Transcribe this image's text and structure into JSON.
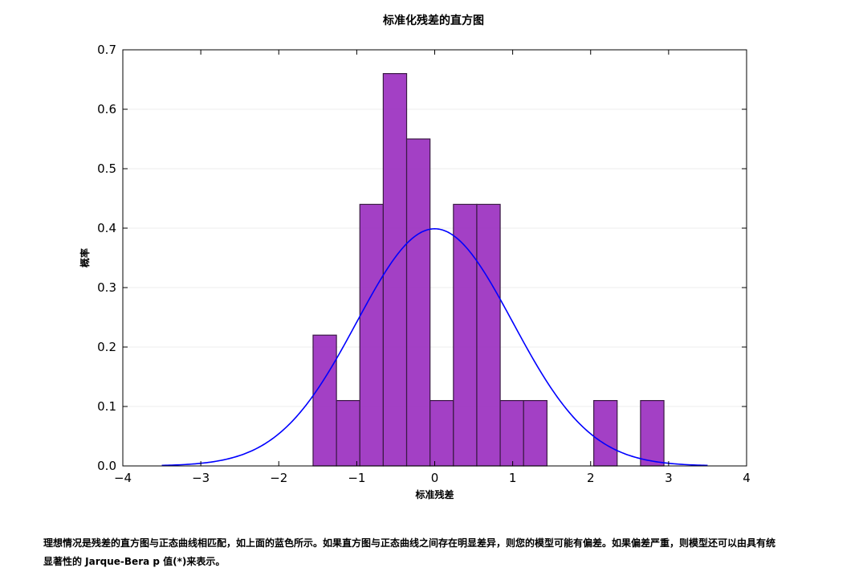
{
  "chart_data": {
    "type": "bar",
    "title": "标准化残差的直方图",
    "xlabel": "标准残差",
    "ylabel": "概率",
    "xlim": [
      -4,
      4
    ],
    "ylim": [
      0,
      0.7
    ],
    "xticks": [
      -4,
      -3,
      -2,
      -1,
      0,
      1,
      2,
      3,
      4
    ],
    "yticks": [
      0.0,
      0.1,
      0.2,
      0.3,
      0.4,
      0.5,
      0.6,
      0.7
    ],
    "xtick_labels": [
      "−4",
      "−3",
      "−2",
      "−1",
      "0",
      "1",
      "2",
      "3",
      "4"
    ],
    "ytick_labels": [
      "0.0",
      "0.1",
      "0.2",
      "0.3",
      "0.4",
      "0.5",
      "0.6",
      "0.7"
    ],
    "grid": true,
    "bin_edges": [
      -1.56,
      -1.26,
      -0.96,
      -0.66,
      -0.36,
      -0.06,
      0.24,
      0.54,
      0.84,
      1.14,
      1.44,
      1.74,
      2.04,
      2.34,
      2.64,
      2.94
    ],
    "values": [
      0.22,
      0.11,
      0.44,
      0.66,
      0.55,
      0.11,
      0.44,
      0.44,
      0.11,
      0.11,
      0,
      0,
      0.11,
      0,
      0.11
    ],
    "bar_color": "#9b30c0",
    "curve": {
      "type": "normal-pdf",
      "mean": 0,
      "sd": 1,
      "x_range": [
        -3.5,
        3.5
      ],
      "color": "#0000ff"
    }
  },
  "caption": {
    "line1": "理想情况是残差的直方图与正态曲线相匹配，如上面的蓝色所示。如果直方图与正态曲线之间存在明显差异，则您的模型可能有偏差。如果偏差严重，则模型还可以由具有统",
    "line2": "显著性的 Jarque-Bera p 值(*)来表示。"
  }
}
